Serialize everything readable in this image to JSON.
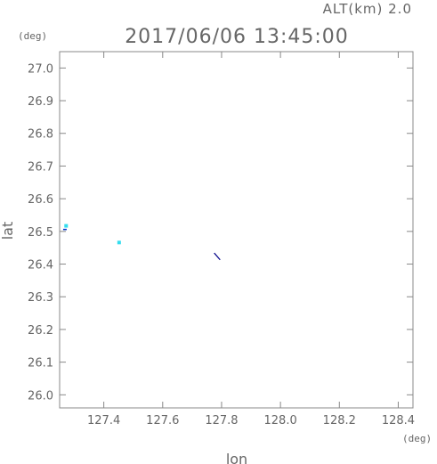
{
  "header": {
    "altitude_label": "ALT(km) 2.0",
    "timestamp": "2017/06/06 13:45:00"
  },
  "chart_data": {
    "type": "scatter",
    "xlabel": "lon",
    "ylabel": "lat",
    "x_unit": "(deg)",
    "y_unit": "(deg)",
    "xlim": [
      127.25,
      128.45
    ],
    "ylim": [
      25.96,
      27.05
    ],
    "x_ticks": [
      127.4,
      127.6,
      127.8,
      128.0,
      128.2,
      128.4
    ],
    "x_tick_labels": [
      "127.4",
      "127.6",
      "127.8",
      "128.0",
      "128.2",
      "128.4"
    ],
    "y_ticks": [
      26.0,
      26.1,
      26.2,
      26.3,
      26.4,
      26.5,
      26.6,
      26.7,
      26.8,
      26.9,
      27.0
    ],
    "y_tick_labels": [
      "26.0",
      "26.1",
      "26.2",
      "26.3",
      "26.4",
      "26.5",
      "26.6",
      "26.7",
      "26.8",
      "26.9",
      "27.0"
    ],
    "grid": false,
    "markers": [
      {
        "lon": 127.272,
        "lat": 26.517,
        "kind": "square",
        "size": 0.012,
        "color": "#33ddee"
      },
      {
        "lon": 127.268,
        "lat": 26.506,
        "kind": "tick",
        "color": "#0033cc"
      },
      {
        "lon": 127.452,
        "lat": 26.466,
        "kind": "square",
        "size": 0.006,
        "color": "#33ddee"
      }
    ],
    "tracks": [
      {
        "color": "#000088",
        "points": [
          [
            127.775,
            26.434
          ],
          [
            127.795,
            26.413
          ]
        ]
      }
    ]
  }
}
